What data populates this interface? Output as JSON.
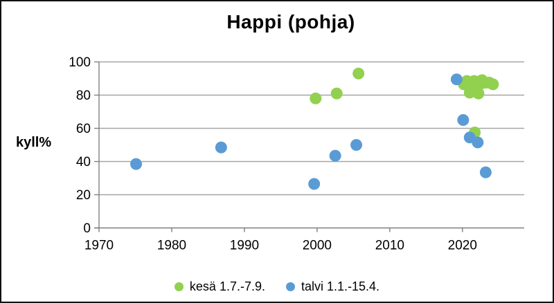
{
  "window": {
    "background": "#ffffff",
    "border_color": "#111111"
  },
  "chart_data": {
    "type": "scatter",
    "title": "Happi (pohja)",
    "ylabel": "kyll%",
    "xlabel": "",
    "xlim": [
      1970,
      2028.5
    ],
    "ylim": [
      0,
      100
    ],
    "x_ticks": [
      1970,
      1980,
      1990,
      2000,
      2010,
      2020
    ],
    "y_ticks": [
      0,
      20,
      40,
      60,
      80,
      100
    ],
    "grid": "horizontal gridlines every 20",
    "gridline_color": "#a6a6a6",
    "axis_color": "#7f7f7f",
    "text_color": "#000000",
    "marker_radius": 8.5,
    "legend_position": "bottom",
    "series": [
      {
        "name": "kesä 1.7.-7.9.",
        "color": "#92d050",
        "points": [
          [
            1999.8,
            78
          ],
          [
            2002.7,
            81
          ],
          [
            2005.7,
            93
          ],
          [
            2020.2,
            86.5
          ],
          [
            2020.6,
            88.5
          ],
          [
            2021.0,
            81.5
          ],
          [
            2021.1,
            86
          ],
          [
            2021.5,
            83
          ],
          [
            2021.6,
            88.5
          ],
          [
            2022.0,
            88
          ],
          [
            2022.2,
            81
          ],
          [
            2022.4,
            86.5
          ],
          [
            2022.7,
            89
          ],
          [
            2023.2,
            87.5
          ],
          [
            2023.7,
            87.5
          ],
          [
            2024.2,
            86.5
          ],
          [
            2021.7,
            57.5
          ]
        ]
      },
      {
        "name": "talvi 1.1.-15.4.",
        "color": "#5b9bd5",
        "points": [
          [
            1975.1,
            38.5
          ],
          [
            1986.8,
            48.5
          ],
          [
            1999.6,
            26.5
          ],
          [
            2002.5,
            43.5
          ],
          [
            2005.4,
            50
          ],
          [
            2019.2,
            89.5
          ],
          [
            2020.1,
            65
          ],
          [
            2021.0,
            54.5
          ],
          [
            2022.1,
            51.5
          ],
          [
            2023.2,
            33.5
          ]
        ]
      }
    ]
  }
}
